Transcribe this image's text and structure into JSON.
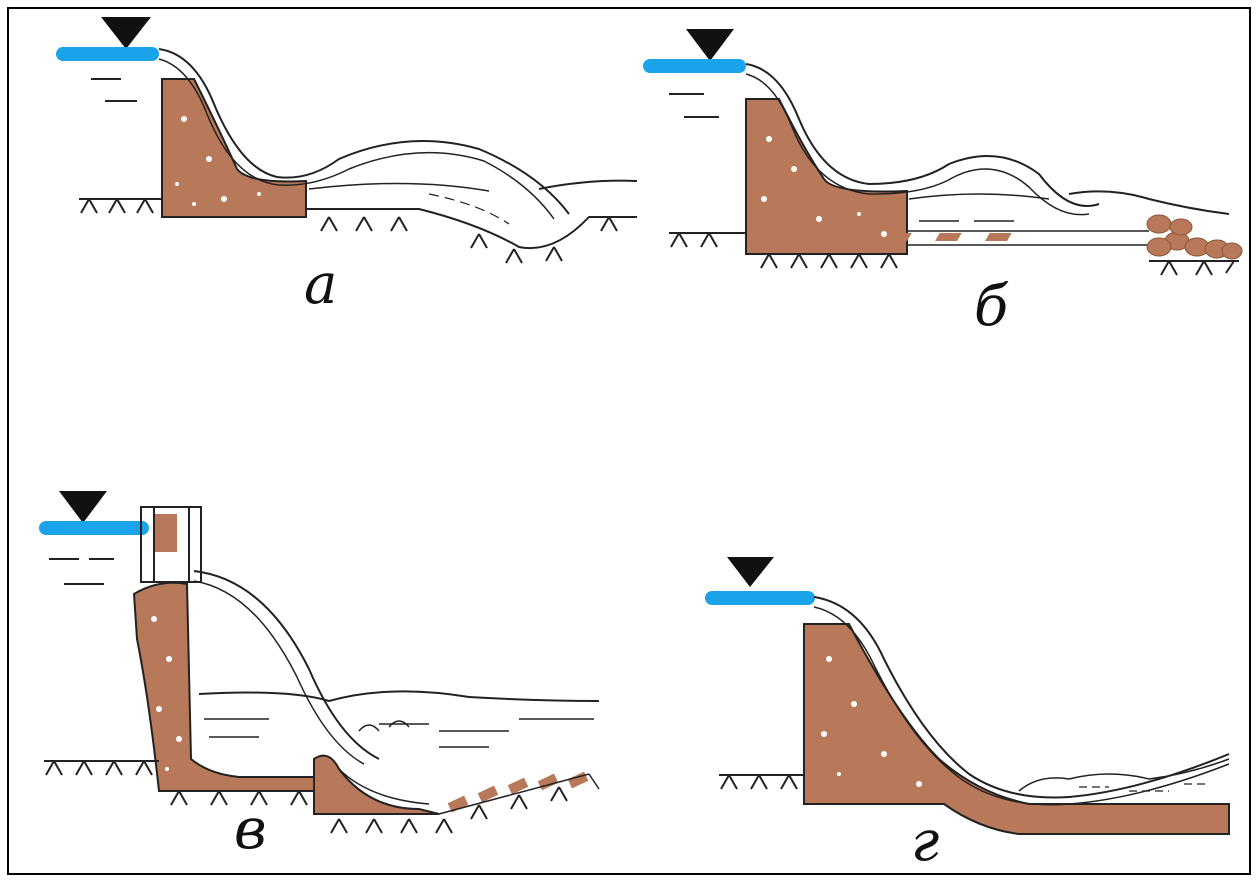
{
  "panels": [
    {
      "id": "a",
      "label": "а"
    },
    {
      "id": "b",
      "label": "б"
    },
    {
      "id": "v",
      "label": "в"
    },
    {
      "id": "g",
      "label": "г"
    }
  ],
  "colors": {
    "water_surface": "#1aa3e8",
    "structure": "#b8795a",
    "ink": "#222222",
    "background": "#ffffff"
  },
  "icons": [
    "water-level-triangle-icon",
    "ground-hatching-icon"
  ]
}
